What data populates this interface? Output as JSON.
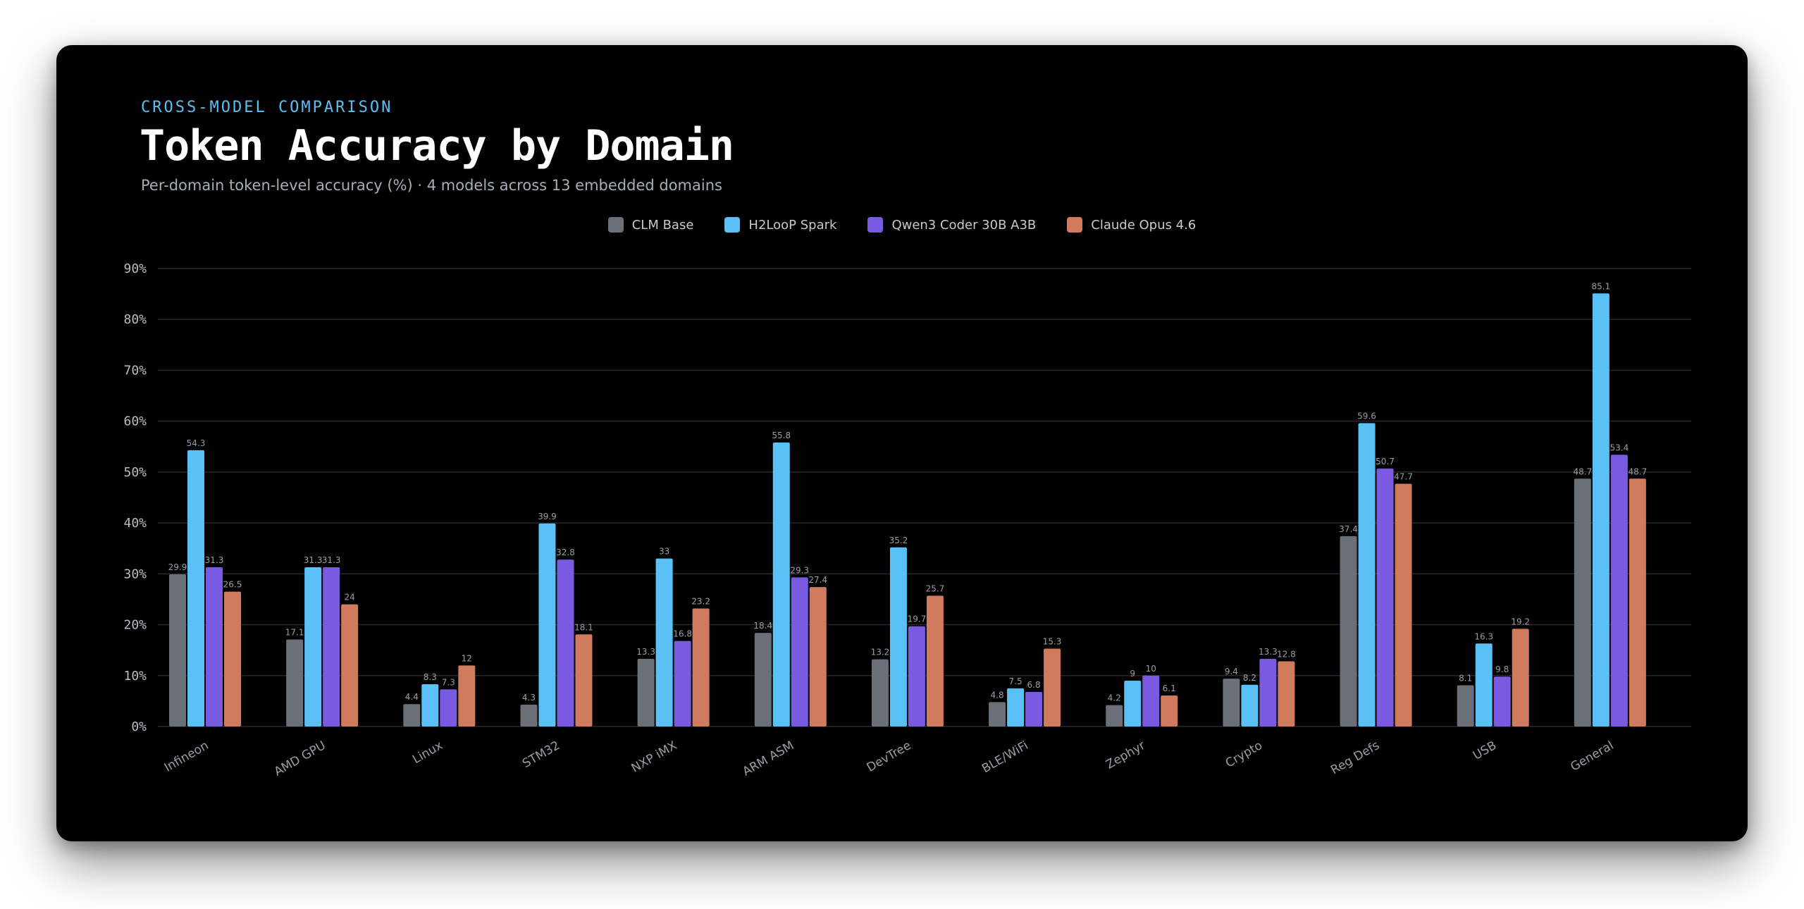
{
  "header": {
    "eyebrow": "CROSS-MODEL COMPARISON",
    "title": "Token Accuracy by Domain",
    "subtitle": "Per-domain token-level accuracy (%) · 4 models across 13 embedded domains"
  },
  "chart_data": {
    "type": "bar",
    "title": "Token Accuracy by Domain",
    "xlabel": "",
    "ylabel": "",
    "ylim": [
      0,
      90
    ],
    "yticks": [
      0,
      10,
      20,
      30,
      40,
      50,
      60,
      70,
      80,
      90
    ],
    "ytick_labels": [
      "0%",
      "10%",
      "20%",
      "30%",
      "40%",
      "50%",
      "60%",
      "70%",
      "80%",
      "90%"
    ],
    "grid": true,
    "legend_position": "top-center",
    "categories": [
      "Infineon",
      "AMD GPU",
      "Linux",
      "STM32",
      "NXP iMX",
      "ARM ASM",
      "DevTree",
      "BLE/WiFi",
      "Zephyr",
      "Crypto",
      "Reg Defs",
      "USB",
      "General"
    ],
    "series": [
      {
        "name": "CLM Base",
        "color": "#6b6f78",
        "values": [
          29.9,
          17.1,
          4.4,
          4.3,
          13.3,
          18.4,
          13.2,
          4.8,
          4.2,
          9.4,
          37.4,
          8.1,
          48.7
        ]
      },
      {
        "name": "H2LooP Spark",
        "color": "#5ac0f5",
        "values": [
          54.3,
          31.3,
          8.3,
          39.9,
          33,
          55.8,
          35.2,
          7.5,
          9,
          8.2,
          59.6,
          16.3,
          85.1
        ]
      },
      {
        "name": "Qwen3 Coder 30B A3B",
        "color": "#7a5ae0",
        "values": [
          31.3,
          31.3,
          7.3,
          32.8,
          16.8,
          29.3,
          19.7,
          6.8,
          10,
          13.3,
          50.7,
          9.8,
          53.4
        ]
      },
      {
        "name": "Claude Opus 4.6",
        "color": "#d07a5e",
        "values": [
          26.5,
          24,
          12,
          18.1,
          23.2,
          27.4,
          25.7,
          15.3,
          6.1,
          12.8,
          47.7,
          19.2,
          48.7
        ]
      }
    ]
  }
}
